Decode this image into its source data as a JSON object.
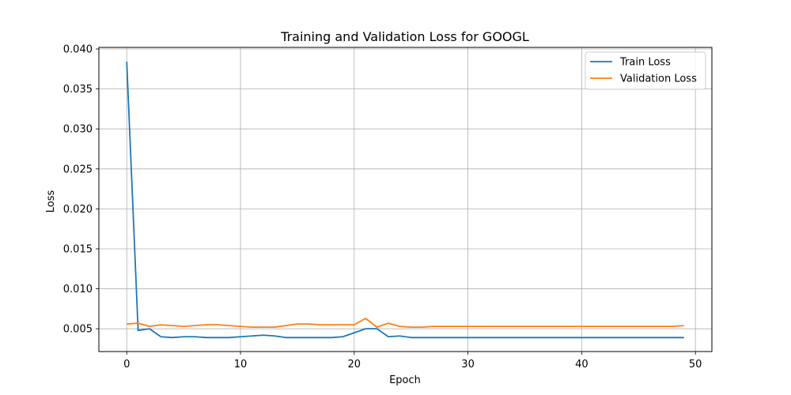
{
  "chart_data": {
    "type": "line",
    "title": "Training and Validation Loss for GOOGL",
    "xlabel": "Epoch",
    "ylabel": "Loss",
    "xlim": [
      -2.45,
      51.45
    ],
    "ylim": [
      0.00215,
      0.0402
    ],
    "xticks": [
      0,
      10,
      20,
      30,
      40,
      50
    ],
    "yticks": [
      0.005,
      0.01,
      0.015,
      0.02,
      0.025,
      0.03,
      0.035,
      0.04
    ],
    "ytick_labels": [
      "0.005",
      "0.010",
      "0.015",
      "0.020",
      "0.025",
      "0.030",
      "0.035",
      "0.040"
    ],
    "grid": true,
    "legend_position": "top-right",
    "series": [
      {
        "name": "Train Loss",
        "color": "#1f77b4",
        "values": [
          0.0384,
          0.0048,
          0.005,
          0.004,
          0.0039,
          0.004,
          0.004,
          0.0039,
          0.0039,
          0.0039,
          0.004,
          0.0041,
          0.0042,
          0.0041,
          0.0039,
          0.0039,
          0.0039,
          0.0039,
          0.0039,
          0.004,
          0.0045,
          0.005,
          0.005,
          0.004,
          0.0041,
          0.0039,
          0.0039,
          0.0039,
          0.0039,
          0.0039,
          0.0039,
          0.0039,
          0.0039,
          0.0039,
          0.0039,
          0.0039,
          0.0039,
          0.0039,
          0.0039,
          0.0039,
          0.0039,
          0.0039,
          0.0039,
          0.0039,
          0.0039,
          0.0039,
          0.0039,
          0.0039,
          0.0039,
          0.0039
        ]
      },
      {
        "name": "Validation Loss",
        "color": "#ff7f0e",
        "values": [
          0.0056,
          0.0057,
          0.0053,
          0.0055,
          0.0054,
          0.0053,
          0.0054,
          0.0055,
          0.0055,
          0.0054,
          0.0053,
          0.0052,
          0.0052,
          0.0052,
          0.0054,
          0.0056,
          0.0056,
          0.0055,
          0.0055,
          0.0055,
          0.0055,
          0.0063,
          0.0052,
          0.0057,
          0.0053,
          0.0052,
          0.0052,
          0.0053,
          0.0053,
          0.0053,
          0.0053,
          0.0053,
          0.0053,
          0.0053,
          0.0053,
          0.0053,
          0.0053,
          0.0053,
          0.0053,
          0.0053,
          0.0053,
          0.0053,
          0.0053,
          0.0053,
          0.0053,
          0.0053,
          0.0053,
          0.0053,
          0.0053,
          0.0054
        ]
      }
    ]
  }
}
